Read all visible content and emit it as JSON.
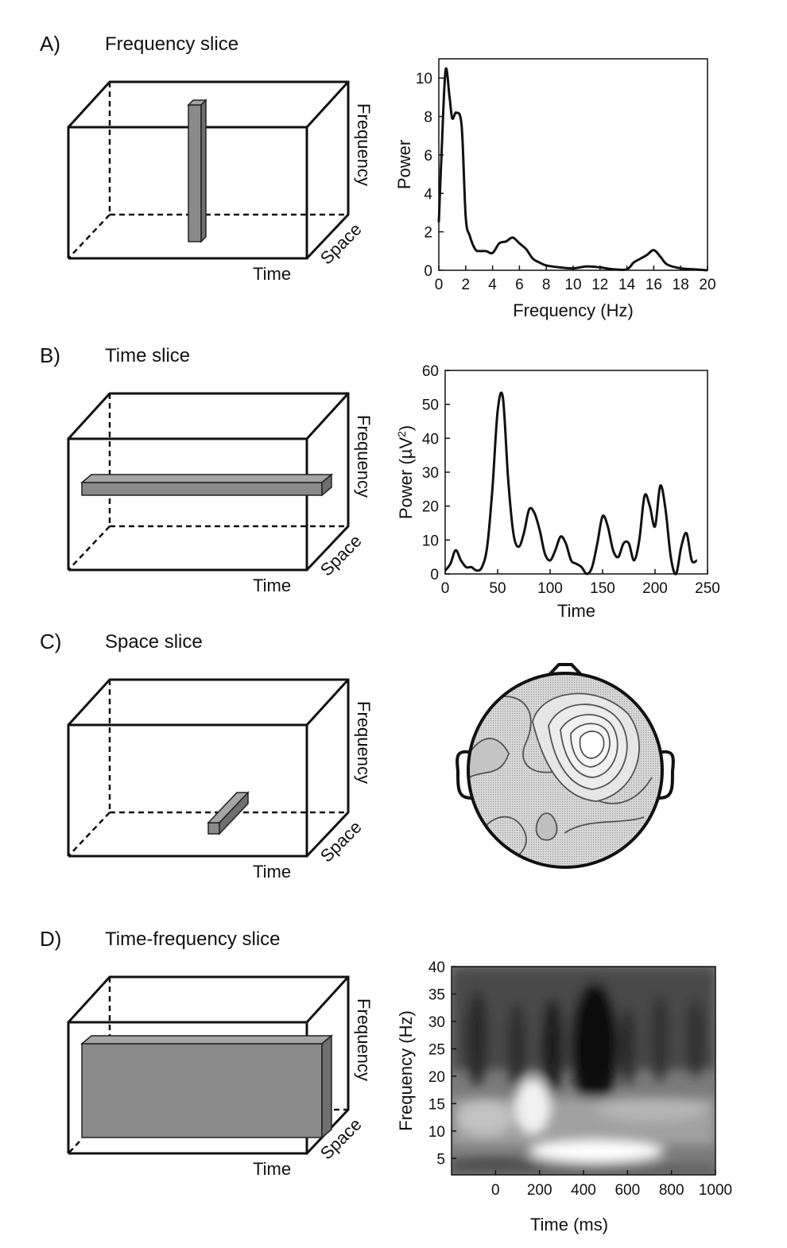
{
  "panels": [
    {
      "letter": "A)",
      "title": "Frequency slice",
      "cube": {
        "axis_vertical": "Frequency",
        "axis_depth": "Space",
        "axis_horizontal": "Time",
        "slice": "frequency"
      },
      "chart_data": {
        "type": "line",
        "xlabel": "Frequency (Hz)",
        "ylabel": "Power",
        "xlim": [
          0,
          20
        ],
        "ylim": [
          0,
          11
        ],
        "xticks": [
          0,
          2,
          4,
          6,
          8,
          10,
          12,
          14,
          16,
          18,
          20
        ],
        "yticks": [
          0,
          2,
          4,
          6,
          8,
          10
        ],
        "x": [
          0,
          0.2,
          0.5,
          0.8,
          1.0,
          1.3,
          1.7,
          2.0,
          2.3,
          2.7,
          3.0,
          3.5,
          4.0,
          4.5,
          5.0,
          5.5,
          6.0,
          6.5,
          7.0,
          7.5,
          8.0,
          9.0,
          10.0,
          11.0,
          12.0,
          13.0,
          14.0,
          14.5,
          15.0,
          15.5,
          16.0,
          16.5,
          17.0,
          18.0,
          19.0,
          20.0
        ],
        "y": [
          2.5,
          6.0,
          10.4,
          9.0,
          7.9,
          8.2,
          7.5,
          2.8,
          1.8,
          1.1,
          1.0,
          1.0,
          0.9,
          1.4,
          1.5,
          1.7,
          1.4,
          1.1,
          0.6,
          0.4,
          0.25,
          0.15,
          0.1,
          0.2,
          0.15,
          0.05,
          0.05,
          0.4,
          0.6,
          0.8,
          1.05,
          0.7,
          0.3,
          0.1,
          0.05,
          0.0
        ],
        "grid": false
      }
    },
    {
      "letter": "B)",
      "title": "Time slice",
      "cube": {
        "axis_vertical": "Frequency",
        "axis_depth": "Space",
        "axis_horizontal": "Time",
        "slice": "time"
      },
      "chart_data": {
        "type": "line",
        "xlabel": "Time",
        "ylabel_prefix": "Power (µV",
        "ylabel_sup": "2",
        "ylabel_suffix": ")",
        "xlim": [
          0,
          250
        ],
        "ylim": [
          0,
          60
        ],
        "xticks": [
          0,
          50,
          100,
          150,
          200,
          250
        ],
        "yticks": [
          0,
          10,
          20,
          30,
          40,
          50,
          60
        ],
        "x": [
          0,
          5,
          10,
          15,
          20,
          25,
          30,
          35,
          40,
          45,
          50,
          55,
          60,
          65,
          70,
          75,
          80,
          85,
          90,
          95,
          100,
          105,
          110,
          115,
          120,
          125,
          130,
          135,
          140,
          145,
          150,
          155,
          160,
          165,
          170,
          175,
          180,
          185,
          190,
          195,
          200,
          205,
          210,
          215,
          220,
          225,
          230,
          235,
          240
        ],
        "y": [
          1,
          3,
          7,
          4,
          2,
          2,
          1,
          2,
          8,
          25,
          48,
          52,
          28,
          12,
          8,
          12,
          19,
          18,
          13,
          6,
          4,
          7,
          11,
          9,
          4,
          3,
          2,
          0,
          2,
          9,
          17,
          14,
          7,
          5,
          9,
          9,
          4,
          10,
          23,
          20,
          14,
          26,
          19,
          5,
          0,
          8,
          12,
          4,
          4
        ],
        "grid": false
      }
    },
    {
      "letter": "C)",
      "title": "Space slice",
      "cube": {
        "axis_vertical": "Frequency",
        "axis_depth": "Space",
        "axis_horizontal": "Time",
        "slice": "space"
      }
    },
    {
      "letter": "D)",
      "title": "Time-frequency slice",
      "cube": {
        "axis_vertical": "Frequency",
        "axis_depth": "Space",
        "axis_horizontal": "Time",
        "slice": "time-frequency"
      },
      "chart_data": {
        "type": "heatmap",
        "xlabel": "Time (ms)",
        "ylabel": "Frequency (Hz)",
        "xlim": [
          -200,
          1000
        ],
        "ylim": [
          2,
          40
        ],
        "xticks": [
          0,
          200,
          400,
          600,
          800,
          1000
        ],
        "yticks": [
          5,
          10,
          15,
          20,
          25,
          30,
          35,
          40
        ]
      }
    }
  ]
}
